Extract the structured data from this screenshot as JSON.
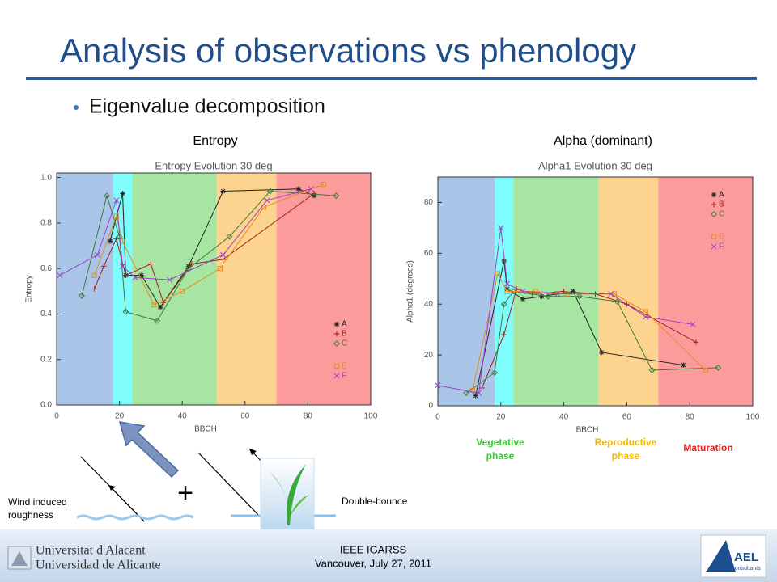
{
  "slide": {
    "title": "Analysis of observations vs phenology",
    "bullet": "Eigenvalue decomposition",
    "panel_titles": [
      "Entropy",
      "Alpha (dominant)"
    ],
    "phases": [
      {
        "lines": [
          "Vegetative",
          "phase"
        ],
        "color": "#33cc33"
      },
      {
        "lines": [
          "Reproductive",
          "phase"
        ],
        "color": "#f5b800"
      },
      {
        "lines": [
          "Maturation"
        ],
        "color": "#e02020"
      }
    ],
    "diagram": {
      "left_label": [
        "Wind induced",
        "roughness"
      ],
      "plus": "+",
      "right_label": "Double-bounce"
    },
    "footer": {
      "conference": "IEEE IGARSS",
      "place_date": "Vancouver, July 27, 2011",
      "university": [
        "Universitat d'Alacant",
        "Universidad de Alicante"
      ],
      "company": "AEL",
      "company_sub": "consultants"
    }
  },
  "chart_data": [
    {
      "type": "line",
      "title": "Entropy Evolution 30 deg",
      "x_label": "BBCH",
      "y_label": "Entropy",
      "xlim": [
        0,
        100
      ],
      "xticks": [
        0,
        20,
        40,
        60,
        80,
        100
      ],
      "ylim": [
        0,
        1.02
      ],
      "yticks": [
        {
          "value": 0,
          "label": "0.0"
        },
        0.2,
        0.4,
        0.6,
        0.8,
        {
          "value": 1,
          "label": "1.0"
        }
      ],
      "legend": "lower right",
      "bands": [
        {
          "from": 0,
          "to": 18,
          "color": "#a9c5e8"
        },
        {
          "from": 18,
          "to": 24,
          "color": "#7ffcfc"
        },
        {
          "from": 24,
          "to": 51,
          "color": "#a6e6a2"
        },
        {
          "from": 51,
          "to": 70,
          "color": "#fcd38f"
        },
        {
          "from": 70,
          "to": 100,
          "color": "#fb9b9b"
        }
      ],
      "series": [
        {
          "name": "A",
          "color": "#222222",
          "marker": "star",
          "x": [
            17,
            21,
            22,
            27,
            33,
            42,
            53,
            77,
            82
          ],
          "values": [
            0.72,
            0.93,
            0.57,
            0.57,
            0.43,
            0.61,
            0.94,
            0.95,
            0.92
          ]
        },
        {
          "name": "B",
          "color": "#a02020",
          "marker": "plus",
          "x": [
            12,
            15,
            19,
            22,
            30,
            34,
            43,
            53,
            82
          ],
          "values": [
            0.51,
            0.61,
            0.73,
            0.57,
            0.62,
            0.45,
            0.62,
            0.64,
            0.93
          ]
        },
        {
          "name": "C",
          "color": "#3f7a3a",
          "marker": "diamond",
          "x": [
            8,
            16,
            20,
            22,
            32,
            42,
            55,
            68,
            89
          ],
          "values": [
            0.48,
            0.92,
            0.74,
            0.41,
            0.37,
            0.6,
            0.74,
            0.94,
            0.92
          ]
        },
        {
          "name": "E",
          "color": "#e88a20",
          "marker": "square",
          "x": [
            12,
            19,
            21,
            31,
            40,
            52,
            66,
            85
          ],
          "values": [
            0.57,
            0.83,
            0.72,
            0.44,
            0.5,
            0.6,
            0.87,
            0.97
          ]
        },
        {
          "name": "F",
          "color": "#a040c8",
          "marker": "x",
          "x": [
            1,
            13,
            19,
            21,
            25,
            36,
            53,
            67,
            81
          ],
          "values": [
            0.57,
            0.66,
            0.9,
            0.61,
            0.56,
            0.55,
            0.66,
            0.9,
            0.95
          ]
        }
      ]
    },
    {
      "type": "line",
      "title": "Alpha1 Evolution 30 deg",
      "x_label": "BBCH",
      "y_label": "Alpha1 (degrees)",
      "xlim": [
        0,
        100
      ],
      "xticks": [
        0,
        20,
        40,
        60,
        80,
        100
      ],
      "ylim": [
        0,
        90
      ],
      "yticks": [
        0,
        20,
        40,
        60,
        80
      ],
      "legend": "upper right",
      "bands": [
        {
          "from": 0,
          "to": 18,
          "color": "#a9c5e8"
        },
        {
          "from": 18,
          "to": 24,
          "color": "#7ffcfc"
        },
        {
          "from": 24,
          "to": 51,
          "color": "#a6e6a2"
        },
        {
          "from": 51,
          "to": 70,
          "color": "#fcd38f"
        },
        {
          "from": 70,
          "to": 100,
          "color": "#fb9b9b"
        }
      ],
      "series": [
        {
          "name": "A",
          "color": "#222222",
          "marker": "star",
          "x": [
            12,
            21,
            22,
            27,
            33,
            43,
            52,
            78
          ],
          "values": [
            4,
            57,
            46,
            42,
            43,
            45,
            21,
            16
          ]
        },
        {
          "name": "B",
          "color": "#a02020",
          "marker": "plus",
          "x": [
            14,
            21,
            25,
            30,
            40,
            50,
            60,
            82
          ],
          "values": [
            7,
            28,
            46,
            44,
            45,
            44,
            40,
            25
          ]
        },
        {
          "name": "C",
          "color": "#3f7a3a",
          "marker": "diamond",
          "x": [
            9,
            18,
            21,
            24,
            35,
            45,
            57,
            68,
            89
          ],
          "values": [
            5,
            13,
            40,
            45,
            43,
            43,
            41,
            14,
            15
          ]
        },
        {
          "name": "E",
          "color": "#e88a20",
          "marker": "square",
          "x": [
            11,
            19,
            22,
            31,
            41,
            56,
            66,
            85
          ],
          "values": [
            6,
            52,
            45,
            45,
            44,
            44,
            37,
            14
          ]
        },
        {
          "name": "F",
          "color": "#a040c8",
          "marker": "x",
          "x": [
            0,
            13,
            20,
            22,
            27,
            38,
            55,
            66,
            81
          ],
          "values": [
            8,
            5,
            70,
            48,
            45,
            44,
            44,
            35,
            32
          ]
        }
      ]
    }
  ]
}
